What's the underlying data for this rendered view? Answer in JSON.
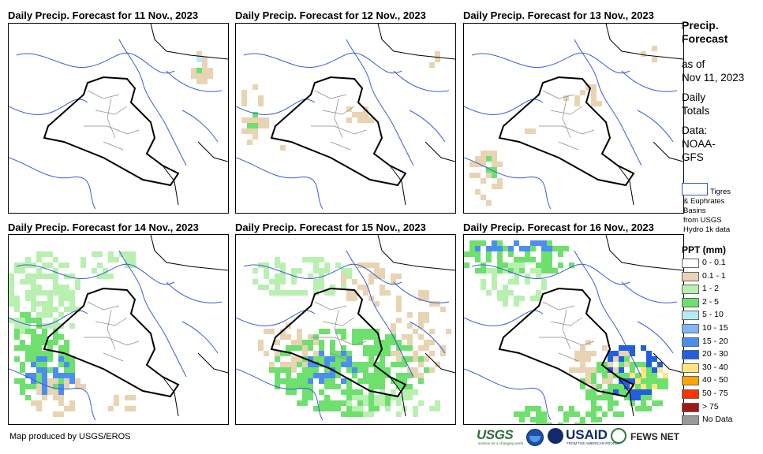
{
  "panels": [
    {
      "title": "Daily Precip. Forecast for 11 Nov., 2023",
      "day": "11 Nov."
    },
    {
      "title": "Daily Precip. Forecast for 12 Nov., 2023",
      "day": "12 Nov."
    },
    {
      "title": "Daily Precip. Forecast for 13 Nov., 2023",
      "day": "13 Nov."
    },
    {
      "title": "Daily Precip. Forecast for 14 Nov., 2023",
      "day": "14 Nov."
    },
    {
      "title": "Daily Precip. Forecast for 15 Nov., 2023",
      "day": "15 Nov."
    },
    {
      "title": "Daily Precip. Forecast for 16 Nov., 2023",
      "day": "16 Nov."
    }
  ],
  "sidebar": {
    "heading_line1": "Precip.",
    "heading_line2": "Forecast",
    "asof_line1": "as of",
    "asof_line2": "Nov 11, 2023",
    "totals_line1": "Daily",
    "totals_line2": "Totals",
    "data_line1": "Data:",
    "data_line2": "NOAA-",
    "data_line3": "GFS"
  },
  "basin_legend": {
    "line1": "Tigres",
    "line2": "& Euphrates",
    "line3": "Basins",
    "line4": "from USGS",
    "line5": "Hydro 1k data",
    "outline_color": "#3355cc"
  },
  "ppt_legend": {
    "title": "PPT (mm)",
    "classes": [
      {
        "label": "0 - 0.1",
        "color": "#ffffff"
      },
      {
        "label": "0.1 - 1",
        "color": "#e8d3b3"
      },
      {
        "label": "1 - 2",
        "color": "#b8f0b0"
      },
      {
        "label": "2 - 5",
        "color": "#6ee06e"
      },
      {
        "label": "5 - 10",
        "color": "#b4ecf5"
      },
      {
        "label": "10 - 15",
        "color": "#7fb8f2"
      },
      {
        "label": "15 - 20",
        "color": "#4a8ff0"
      },
      {
        "label": "20 - 30",
        "color": "#1f5fe0"
      },
      {
        "label": "30 - 40",
        "color": "#ffe680"
      },
      {
        "label": "40 - 50",
        "color": "#ffa500"
      },
      {
        "label": "50 - 75",
        "color": "#ff3300"
      },
      {
        "label": "> 75",
        "color": "#a01818"
      },
      {
        "label": "No Data",
        "color": "#999999"
      }
    ]
  },
  "footer": {
    "credit": "Map produced by USGS/EROS",
    "logo_usgs": "USGS",
    "logo_usgs_tagline": "science for a changing world",
    "logo_usaid": "USAID",
    "logo_usaid_tagline": "FROM THE AMERICAN PEOPLE",
    "logo_fews": "FEWS NET"
  }
}
